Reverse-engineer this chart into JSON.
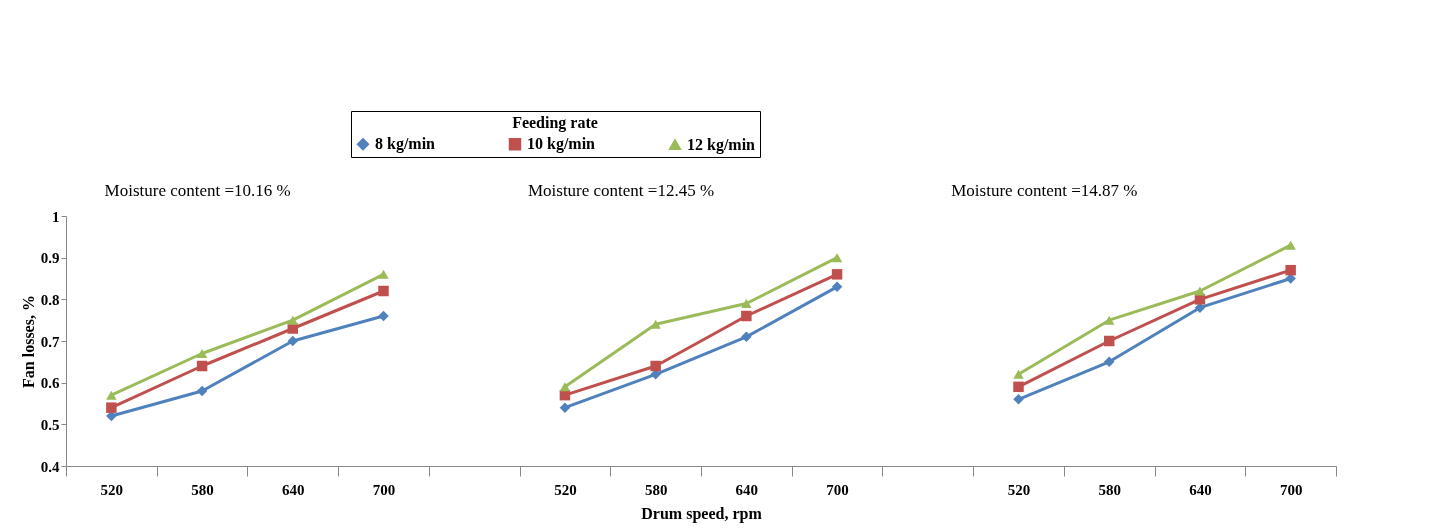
{
  "chart_data": {
    "type": "line",
    "xlabel": "Drum speed, rpm",
    "ylabel": "Fan losses, %",
    "legend_title": "Feeding rate",
    "legend": "top",
    "categories": [
      "520",
      "580",
      "640",
      "700",
      null,
      "520",
      "580",
      "640",
      "700",
      null,
      "520",
      "580",
      "640",
      "700"
    ],
    "series": [
      {
        "name": "8 kg/min",
        "color": "#4f81bd",
        "marker": "diamond",
        "values": [
          0.52,
          0.58,
          0.7,
          0.76,
          null,
          0.54,
          0.62,
          0.71,
          0.83,
          null,
          0.56,
          0.65,
          0.78,
          0.85
        ]
      },
      {
        "name": "10 kg/min",
        "color": "#c0504d",
        "marker": "square",
        "values": [
          0.54,
          0.64,
          0.73,
          0.82,
          null,
          0.57,
          0.64,
          0.76,
          0.86,
          null,
          0.59,
          0.7,
          0.8,
          0.87
        ]
      },
      {
        "name": "12 kg/min",
        "color": "#9bbb59",
        "marker": "triangle",
        "values": [
          0.57,
          0.67,
          0.75,
          0.86,
          null,
          0.59,
          0.74,
          0.79,
          0.9,
          null,
          0.62,
          0.75,
          0.82,
          0.93
        ]
      }
    ],
    "ylim": [
      0.4,
      1
    ],
    "yticks": [
      0.4,
      0.5,
      0.6,
      0.7,
      0.8,
      0.9,
      {
        "value": 1,
        "label": "1"
      }
    ],
    "grid": false,
    "annotations": [
      "Moisture content  =10.16 %",
      "Moisture content  =12.45 %",
      "Moisture content  =14.87 %"
    ]
  }
}
